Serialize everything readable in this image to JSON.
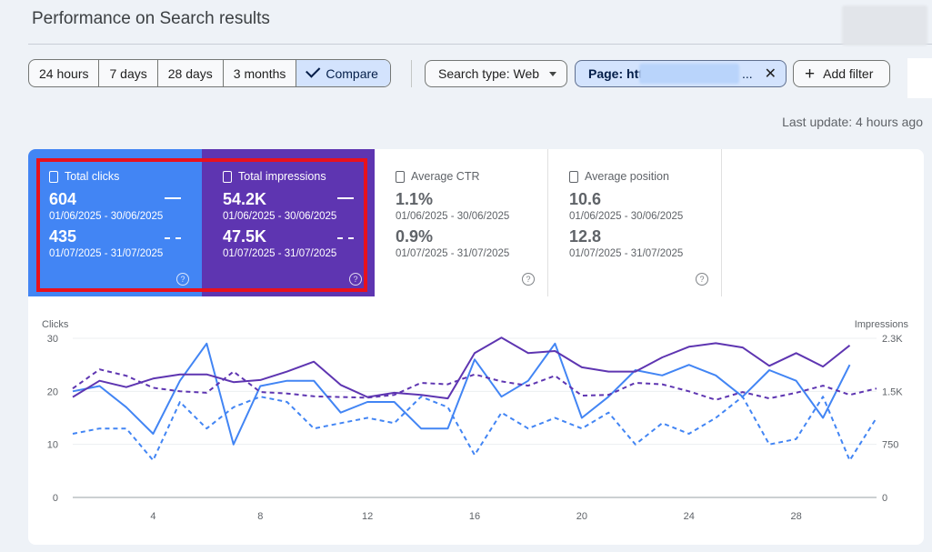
{
  "header": {
    "title": "Performance on Search results"
  },
  "date_range": {
    "options": [
      "24 hours",
      "7 days",
      "28 days",
      "3 months"
    ],
    "compare_label": "Compare"
  },
  "filters": {
    "search_type": "Search type: Web",
    "page_prefix": "Page: htt",
    "page_ellipsis": "...",
    "close": "✕",
    "add_filter": "Add filter",
    "add_icon": "+"
  },
  "last_update": "Last update: 4 hours ago",
  "metrics": [
    {
      "label": "Total clicks",
      "value1": "604",
      "range1": "01/06/2025 - 30/06/2025",
      "value2": "435",
      "range2": "01/07/2025 - 31/07/2025",
      "help": "?"
    },
    {
      "label": "Total impressions",
      "value1": "54.2K",
      "range1": "01/06/2025 - 30/06/2025",
      "value2": "47.5K",
      "range2": "01/07/2025 - 31/07/2025",
      "help": "?"
    },
    {
      "label": "Average CTR",
      "value1": "1.1%",
      "range1": "01/06/2025 - 30/06/2025",
      "value2": "0.9%",
      "range2": "01/07/2025 - 31/07/2025",
      "help": "?"
    },
    {
      "label": "Average position",
      "value1": "10.6",
      "range1": "01/06/2025 - 30/06/2025",
      "value2": "12.8",
      "range2": "01/07/2025 - 31/07/2025",
      "help": "?"
    }
  ],
  "colors": {
    "clicks": "#4285f4",
    "impressions": "#5e35b1",
    "highlight": "#e8111d"
  },
  "chart_data": {
    "type": "line",
    "ylabel_left": "Clicks",
    "ylabel_right": "Impressions",
    "y_left_ticks": [
      "0",
      "10",
      "20",
      "30"
    ],
    "y_right_ticks": [
      "0",
      "750",
      "1.5K",
      "2.3K"
    ],
    "y_left_lim": [
      0,
      30
    ],
    "y_right_lim": [
      0,
      2250
    ],
    "x_ticks": [
      "4",
      "8",
      "12",
      "16",
      "20",
      "24",
      "28"
    ],
    "x": [
      1,
      2,
      3,
      4,
      5,
      6,
      7,
      8,
      9,
      10,
      11,
      12,
      13,
      14,
      15,
      16,
      17,
      18,
      19,
      20,
      21,
      22,
      23,
      24,
      25,
      26,
      27,
      28,
      29,
      30,
      31
    ],
    "series": [
      {
        "axis": "left",
        "style": "solid",
        "color": "#4285f4",
        "values": [
          20,
          21,
          17,
          12,
          22,
          29,
          10,
          21,
          22,
          22,
          16,
          18,
          18,
          13,
          13,
          26,
          19,
          22,
          29,
          15,
          19,
          24,
          23,
          25,
          23,
          19,
          24,
          22,
          15,
          25,
          null
        ]
      },
      {
        "axis": "left",
        "style": "dashed",
        "color": "#4285f4",
        "values": [
          12,
          13,
          13,
          7,
          18,
          13,
          17,
          19,
          18,
          13,
          14,
          15,
          14,
          19,
          17,
          8,
          16,
          13,
          15,
          13,
          16,
          10,
          14,
          12,
          15,
          19,
          10,
          11,
          19,
          7,
          15
        ]
      },
      {
        "axis": "right",
        "style": "solid",
        "color": "#5e35b1",
        "values": [
          1420,
          1650,
          1560,
          1680,
          1740,
          1740,
          1630,
          1660,
          1780,
          1920,
          1590,
          1420,
          1480,
          1450,
          1400,
          2040,
          2260,
          2040,
          2070,
          1840,
          1780,
          1780,
          1980,
          2130,
          2180,
          2120,
          1860,
          2040,
          1850,
          2150,
          null
        ]
      },
      {
        "axis": "right",
        "style": "dashed",
        "color": "#5e35b1",
        "values": [
          1540,
          1810,
          1720,
          1550,
          1500,
          1480,
          1780,
          1490,
          1470,
          1430,
          1420,
          1410,
          1450,
          1620,
          1600,
          1740,
          1640,
          1580,
          1720,
          1440,
          1450,
          1620,
          1600,
          1500,
          1380,
          1490,
          1400,
          1480,
          1580,
          1450,
          1540
        ]
      }
    ]
  }
}
